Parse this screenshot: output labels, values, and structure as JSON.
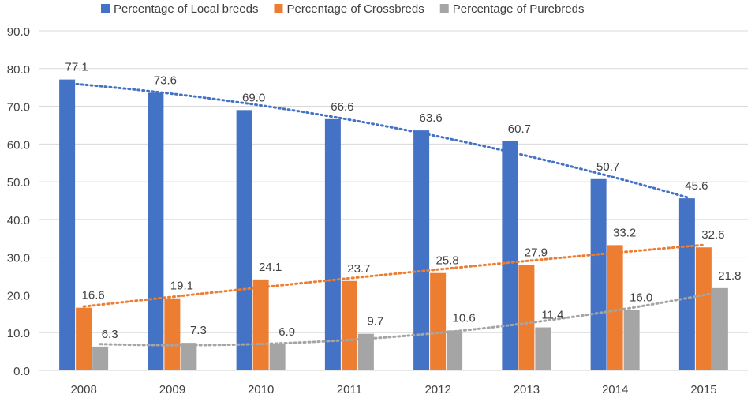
{
  "chart_data": {
    "type": "bar",
    "title": "",
    "xlabel": "",
    "ylabel": "",
    "ylim": [
      0,
      90
    ],
    "ytick_step": 10,
    "ytick_labels": [
      "0.0",
      "10.0",
      "20.0",
      "30.0",
      "40.0",
      "50.0",
      "60.0",
      "70.0",
      "80.0",
      "90.0"
    ],
    "grid": true,
    "legend_position": "top-center",
    "categories": [
      "2008",
      "2009",
      "2010",
      "2011",
      "2012",
      "2013",
      "2014",
      "2015"
    ],
    "series": [
      {
        "name": "Percentage of Local breeds",
        "color": "#4472C4",
        "values": [
          77.1,
          73.6,
          69.0,
          66.6,
          63.6,
          60.7,
          50.7,
          45.6
        ],
        "labels": [
          "77.1",
          "73.6",
          "69.0",
          "66.6",
          "63.6",
          "60.7",
          "50.7",
          "45.6"
        ],
        "trendline": true
      },
      {
        "name": "Percentage of Crossbreds",
        "color": "#ED7D31",
        "values": [
          16.6,
          19.1,
          24.1,
          23.7,
          25.8,
          27.9,
          33.2,
          32.6
        ],
        "labels": [
          "16.6",
          "19.1",
          "24.1",
          "23.7",
          "25.8",
          "27.9",
          "33.2",
          "32.6"
        ],
        "trendline": true
      },
      {
        "name": "Percentage of Purebreds",
        "color": "#A5A5A5",
        "values": [
          6.3,
          7.3,
          6.9,
          9.7,
          10.6,
          11.4,
          16.0,
          21.8
        ],
        "labels": [
          "6.3",
          "7.3",
          "6.9",
          "9.7",
          "10.6",
          "11.4",
          "16.0",
          "21.8"
        ],
        "trendline": true
      }
    ],
    "trendline_type": "polynomial-2"
  }
}
